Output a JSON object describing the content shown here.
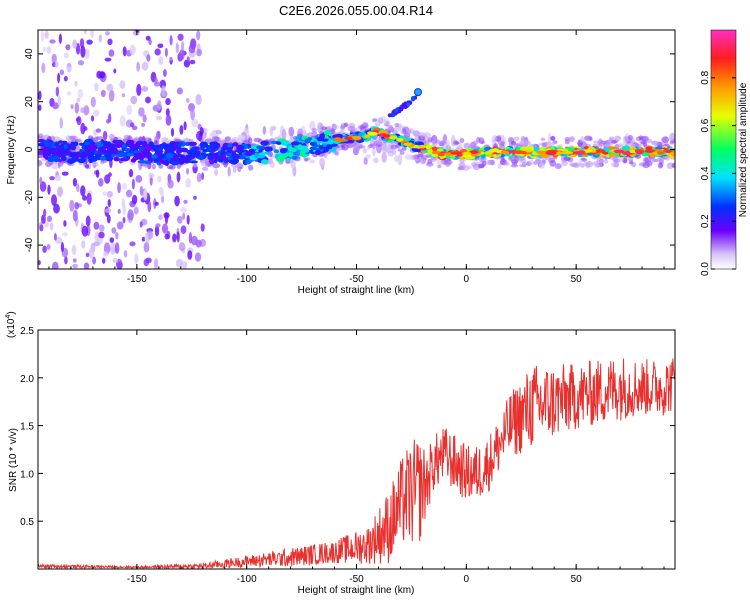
{
  "title": "C2E6.2026.055.00.04.R14",
  "chart_data": [
    {
      "type": "heatmap",
      "title": "C2E6.2026.055.00.04.R14",
      "xlabel": "Height of straight line (km)",
      "ylabel": "Frequency (Hz)",
      "xlim": [
        -195,
        95
      ],
      "ylim": [
        -50,
        50
      ],
      "xticks": [
        -150,
        -100,
        -50,
        0,
        50
      ],
      "yticks": [
        -40,
        -20,
        0,
        20,
        40
      ],
      "ridge": {
        "x": [
          -195,
          -180,
          -160,
          -140,
          -120,
          -100,
          -90,
          -80,
          -70,
          -60,
          -50,
          -45,
          -40,
          -35,
          -30,
          -25,
          -20,
          -15,
          -10,
          -5,
          0,
          10,
          20,
          40,
          60,
          80,
          95
        ],
        "freq": [
          0,
          -1,
          0,
          -2,
          -1,
          -2,
          -1,
          0,
          2,
          4,
          5,
          6,
          8,
          5,
          4,
          2,
          1,
          -1,
          -2,
          -2,
          -2,
          -1,
          -1,
          -1,
          -1,
          -1,
          -1
        ]
      },
      "branch": {
        "x": [
          -35,
          -30,
          -27,
          -24,
          -22
        ],
        "freq": [
          14,
          17,
          19,
          21,
          24
        ]
      },
      "colorbar": {
        "label": "Normalized spectral amplitude",
        "ticks": [
          "0.0",
          "0.2",
          "0.4",
          "0.6",
          "0.8"
        ],
        "range": [
          0,
          1
        ]
      }
    },
    {
      "type": "line",
      "xlabel": "Height of straight line (km)",
      "ylabel": "SNR (10 * v/v)",
      "scale_label_base": "(x10",
      "scale_label_exp": "4",
      "xlim": [
        -195,
        95
      ],
      "ylim": [
        0,
        2.5
      ],
      "xticks": [
        -150,
        -100,
        -50,
        0,
        50
      ],
      "yticks": [
        0.5,
        1.0,
        1.5,
        2.0,
        2.5
      ],
      "ytick_labels": [
        "0.5",
        "1.0",
        "1.5",
        "2.0",
        "2.5"
      ],
      "color": "#e8312f",
      "envelope": {
        "x": [
          -195,
          -150,
          -120,
          -100,
          -80,
          -60,
          -45,
          -35,
          -28,
          -22,
          -18,
          -15,
          -10,
          -5,
          0,
          5,
          10,
          15,
          20,
          25,
          30,
          40,
          50,
          60,
          70,
          80,
          90,
          95
        ],
        "base": [
          0.03,
          0.02,
          0.03,
          0.08,
          0.12,
          0.18,
          0.25,
          0.45,
          0.75,
          0.8,
          0.9,
          1.1,
          1.2,
          1.1,
          1.0,
          1.0,
          1.1,
          1.3,
          1.5,
          1.6,
          1.7,
          1.75,
          1.8,
          1.85,
          1.9,
          1.9,
          1.9,
          1.95
        ],
        "amp": [
          0.02,
          0.01,
          0.03,
          0.06,
          0.1,
          0.12,
          0.2,
          0.4,
          0.5,
          0.6,
          0.35,
          0.3,
          0.3,
          0.3,
          0.3,
          0.3,
          0.3,
          0.3,
          0.35,
          0.4,
          0.45,
          0.4,
          0.35,
          0.35,
          0.35,
          0.3,
          0.3,
          0.3
        ]
      }
    }
  ]
}
